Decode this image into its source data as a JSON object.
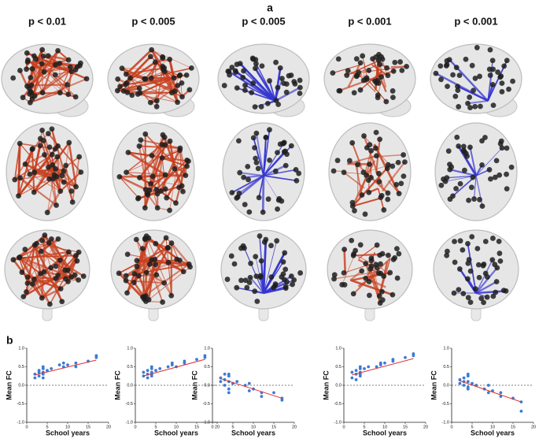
{
  "panel_labels": [
    "a",
    "b"
  ],
  "network_titles": [
    "p < 0.01",
    "p < 0.005",
    "p < 0.005",
    "p < 0.001",
    "p < 0.001"
  ],
  "chart_data": [
    {
      "type": "scatter",
      "xlabel": "School years",
      "ylabel": "Mean FC",
      "color": "#3a7bd5",
      "x": [
        2,
        2,
        3,
        3,
        3,
        4,
        4,
        4,
        4,
        4,
        5,
        6,
        8,
        9,
        9,
        10,
        12,
        12,
        15,
        17,
        17
      ],
      "y": [
        0.3,
        0.2,
        0.35,
        0.25,
        0.4,
        0.3,
        0.45,
        0.2,
        0.5,
        0.35,
        0.4,
        0.45,
        0.55,
        0.5,
        0.6,
        0.55,
        0.6,
        0.5,
        0.65,
        0.75,
        0.8
      ],
      "fit": {
        "color": "#e03030",
        "x": [
          2,
          17
        ],
        "y": [
          0.28,
          0.68
        ]
      },
      "reference_line": 0,
      "xlim": [
        0,
        20
      ],
      "xticks": [
        0,
        5,
        10,
        15,
        20
      ],
      "ylim": [
        -1,
        1
      ],
      "yticks": [
        {
          "value": -1,
          "label": "-1.0"
        },
        {
          "value": -0.5,
          "label": "-0.5"
        },
        {
          "value": 0,
          "label": "0.0"
        },
        {
          "value": 0.5,
          "label": "0.5"
        },
        {
          "value": 1,
          "label": "1.0"
        }
      ]
    },
    {
      "type": "scatter",
      "xlabel": "School years",
      "ylabel": "Mean FC",
      "color": "#3a7bd5",
      "x": [
        2,
        2,
        3,
        3,
        3,
        4,
        4,
        4,
        4,
        4,
        5,
        6,
        8,
        9,
        9,
        10,
        12,
        12,
        15,
        17,
        17
      ],
      "y": [
        0.25,
        0.35,
        0.3,
        0.4,
        0.2,
        0.3,
        0.5,
        0.35,
        0.45,
        0.25,
        0.4,
        0.45,
        0.5,
        0.6,
        0.55,
        0.5,
        0.65,
        0.6,
        0.7,
        0.75,
        0.8
      ],
      "fit": {
        "color": "#e03030",
        "x": [
          2,
          17
        ],
        "y": [
          0.25,
          0.7
        ]
      },
      "reference_line": 0,
      "xlim": [
        0,
        20
      ],
      "xticks": [
        0,
        5,
        10,
        15,
        20
      ],
      "ylim": [
        -1,
        1
      ],
      "yticks": [
        {
          "value": -1,
          "label": "-1.0"
        },
        {
          "value": -0.5,
          "label": "-0.5"
        },
        {
          "value": 0,
          "label": "0.0"
        },
        {
          "value": 0.5,
          "label": "0.5"
        },
        {
          "value": 1,
          "label": "1.0"
        }
      ]
    },
    {
      "type": "scatter",
      "xlabel": "School years",
      "ylabel": "Mean FC",
      "color": "#3a7bd5",
      "x": [
        2,
        2,
        3,
        3,
        3,
        4,
        4,
        4,
        4,
        4,
        5,
        6,
        8,
        9,
        9,
        10,
        12,
        12,
        15,
        17,
        17
      ],
      "y": [
        0.2,
        0.1,
        0.3,
        0.0,
        0.15,
        0.25,
        -0.1,
        0.1,
        0.3,
        -0.2,
        0.05,
        0.1,
        0.0,
        -0.15,
        0.05,
        -0.1,
        -0.2,
        -0.3,
        -0.2,
        -0.35,
        -0.4
      ],
      "fit": {
        "color": "#e03030",
        "x": [
          2,
          17
        ],
        "y": [
          0.18,
          -0.35
        ]
      },
      "reference_line": 0,
      "xlim": [
        0,
        20
      ],
      "xticks": [
        0,
        5,
        10,
        15,
        20
      ],
      "ylim": [
        -1,
        1
      ],
      "yticks": [
        {
          "value": -1,
          "label": "-1.0"
        },
        {
          "value": -0.5,
          "label": "-0.5"
        },
        {
          "value": 0,
          "label": "0.0"
        },
        {
          "value": 0.5,
          "label": "0.5"
        },
        {
          "value": 1,
          "label": "1.0"
        }
      ]
    },
    {
      "type": "scatter",
      "xlabel": "School years",
      "ylabel": "Mean FC",
      "color": "#3a7bd5",
      "x": [
        2,
        2,
        3,
        3,
        3,
        4,
        4,
        4,
        4,
        4,
        5,
        6,
        8,
        9,
        9,
        10,
        12,
        12,
        15,
        17,
        17
      ],
      "y": [
        0.2,
        0.35,
        0.3,
        0.4,
        0.15,
        0.3,
        0.45,
        0.35,
        0.5,
        0.25,
        0.45,
        0.5,
        0.5,
        0.55,
        0.6,
        0.6,
        0.65,
        0.7,
        0.75,
        0.8,
        0.85
      ],
      "fit": {
        "color": "#e03030",
        "x": [
          2,
          17
        ],
        "y": [
          0.28,
          0.72
        ]
      },
      "reference_line": 0,
      "xlim": [
        0,
        20
      ],
      "xticks": [
        0,
        5,
        10,
        15,
        20
      ],
      "ylim": [
        -1,
        1
      ],
      "yticks": [
        {
          "value": -1,
          "label": "-1.0"
        },
        {
          "value": -0.5,
          "label": "-0.5"
        },
        {
          "value": 0,
          "label": "0.0"
        },
        {
          "value": 0.5,
          "label": "0.5"
        },
        {
          "value": 1,
          "label": "1.0"
        }
      ]
    },
    {
      "type": "scatter",
      "xlabel": "School years",
      "ylabel": "Mean FC",
      "color": "#3a7bd5",
      "x": [
        2,
        2,
        3,
        3,
        3,
        4,
        4,
        4,
        4,
        4,
        5,
        6,
        8,
        9,
        9,
        10,
        12,
        12,
        15,
        17,
        17
      ],
      "y": [
        0.15,
        0.05,
        0.2,
        0.0,
        0.1,
        0.25,
        -0.05,
        0.1,
        0.3,
        -0.1,
        0.05,
        0.0,
        -0.1,
        -0.2,
        0.0,
        -0.15,
        -0.3,
        -0.2,
        -0.35,
        -0.45,
        -0.7
      ],
      "fit": {
        "color": "#e03030",
        "x": [
          2,
          17
        ],
        "y": [
          0.12,
          -0.45
        ]
      },
      "reference_line": 0,
      "xlim": [
        0,
        20
      ],
      "xticks": [
        0,
        5,
        10,
        15,
        20
      ],
      "ylim": [
        -1,
        1
      ],
      "yticks": [
        {
          "value": -1,
          "label": "-1.0"
        },
        {
          "value": -0.5,
          "label": "-0.5"
        },
        {
          "value": 0,
          "label": "0.0"
        },
        {
          "value": 0.5,
          "label": "0.5"
        },
        {
          "value": 1,
          "label": "1.0"
        }
      ]
    }
  ]
}
